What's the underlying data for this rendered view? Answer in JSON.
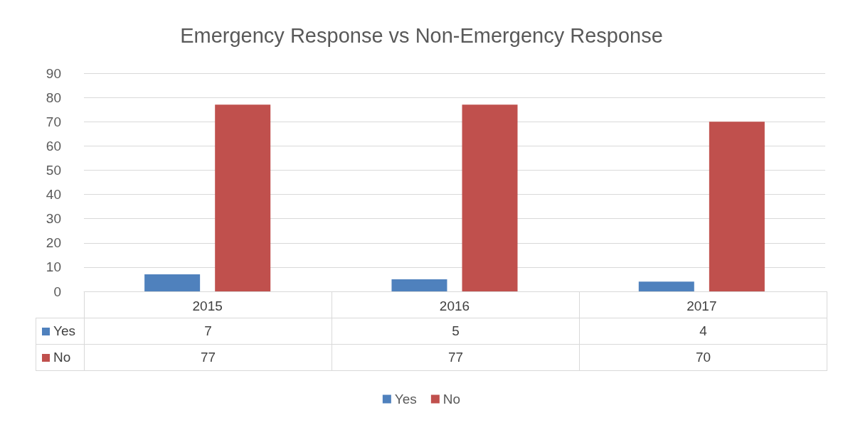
{
  "chart_data": {
    "type": "bar",
    "title": "Emergency Response vs Non-Emergency Response",
    "categories": [
      "2015",
      "2016",
      "2017"
    ],
    "series": [
      {
        "name": "Yes",
        "color": "#4f81bd",
        "values": [
          7,
          5,
          4
        ]
      },
      {
        "name": "No",
        "color": "#c0504d",
        "values": [
          77,
          77,
          70
        ]
      }
    ],
    "ylim": [
      0,
      90
    ],
    "yticks": [
      0,
      10,
      20,
      30,
      40,
      50,
      60,
      70,
      80,
      90
    ],
    "grid": "y",
    "legend": "bottom",
    "data_labels": true
  }
}
